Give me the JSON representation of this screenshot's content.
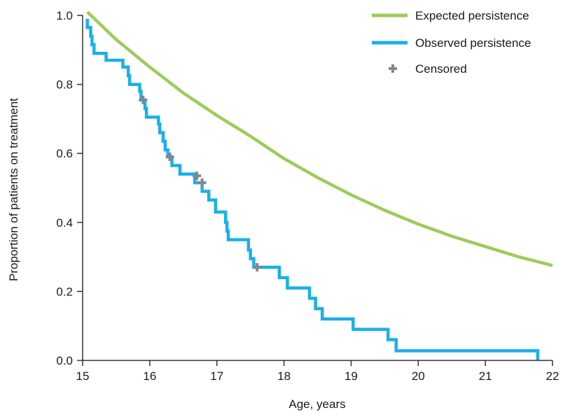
{
  "chart_data": {
    "type": "line",
    "title": "",
    "xlabel": "Age, years",
    "ylabel": "Proportion of patients on treatment",
    "xlim": [
      15,
      22
    ],
    "ylim": [
      0,
      1.0
    ],
    "x_ticks": [
      "15",
      "16",
      "17",
      "18",
      "19",
      "20",
      "21",
      "22"
    ],
    "y_ticks": [
      "0.0",
      "0.2",
      "0.4",
      "0.6",
      "0.8",
      "1.0"
    ],
    "grid": false,
    "legend_position": "top-right",
    "series": [
      {
        "name": "Expected persistence",
        "type": "line",
        "color": "#9ccc5a",
        "points": [
          [
            15.07,
            1.01
          ],
          [
            15.5,
            0.93
          ],
          [
            16.0,
            0.85
          ],
          [
            16.5,
            0.775
          ],
          [
            17.0,
            0.71
          ],
          [
            17.5,
            0.65
          ],
          [
            18.0,
            0.585
          ],
          [
            18.5,
            0.53
          ],
          [
            19.0,
            0.48
          ],
          [
            19.5,
            0.435
          ],
          [
            20.0,
            0.395
          ],
          [
            20.5,
            0.36
          ],
          [
            21.0,
            0.33
          ],
          [
            21.5,
            0.3
          ],
          [
            22.0,
            0.275
          ]
        ]
      },
      {
        "name": "Observed persistence",
        "type": "step",
        "color": "#1ab0e8",
        "points": [
          [
            15.07,
            0.99
          ],
          [
            15.07,
            0.965
          ],
          [
            15.12,
            0.965
          ],
          [
            15.12,
            0.94
          ],
          [
            15.14,
            0.94
          ],
          [
            15.14,
            0.915
          ],
          [
            15.17,
            0.915
          ],
          [
            15.17,
            0.89
          ],
          [
            15.35,
            0.89
          ],
          [
            15.35,
            0.87
          ],
          [
            15.6,
            0.87
          ],
          [
            15.6,
            0.85
          ],
          [
            15.68,
            0.85
          ],
          [
            15.68,
            0.825
          ],
          [
            15.7,
            0.825
          ],
          [
            15.7,
            0.8
          ],
          [
            15.85,
            0.8
          ],
          [
            15.85,
            0.78
          ],
          [
            15.87,
            0.78
          ],
          [
            15.87,
            0.755
          ],
          [
            15.93,
            0.755
          ],
          [
            15.93,
            0.73
          ],
          [
            15.95,
            0.73
          ],
          [
            15.95,
            0.705
          ],
          [
            16.13,
            0.705
          ],
          [
            16.13,
            0.685
          ],
          [
            16.15,
            0.685
          ],
          [
            16.15,
            0.66
          ],
          [
            16.2,
            0.66
          ],
          [
            16.2,
            0.635
          ],
          [
            16.23,
            0.635
          ],
          [
            16.23,
            0.61
          ],
          [
            16.27,
            0.61
          ],
          [
            16.27,
            0.59
          ],
          [
            16.33,
            0.59
          ],
          [
            16.33,
            0.565
          ],
          [
            16.45,
            0.565
          ],
          [
            16.45,
            0.54
          ],
          [
            16.67,
            0.54
          ],
          [
            16.67,
            0.515
          ],
          [
            16.78,
            0.515
          ],
          [
            16.78,
            0.49
          ],
          [
            16.88,
            0.49
          ],
          [
            16.88,
            0.465
          ],
          [
            16.98,
            0.465
          ],
          [
            16.98,
            0.44
          ],
          [
            16.98,
            0.43
          ],
          [
            17.13,
            0.43
          ],
          [
            17.13,
            0.4
          ],
          [
            17.15,
            0.4
          ],
          [
            17.15,
            0.375
          ],
          [
            17.17,
            0.375
          ],
          [
            17.17,
            0.35
          ],
          [
            17.47,
            0.35
          ],
          [
            17.47,
            0.32
          ],
          [
            17.5,
            0.32
          ],
          [
            17.5,
            0.295
          ],
          [
            17.55,
            0.295
          ],
          [
            17.55,
            0.27
          ],
          [
            17.93,
            0.27
          ],
          [
            17.93,
            0.24
          ],
          [
            18.05,
            0.24
          ],
          [
            18.05,
            0.21
          ],
          [
            18.38,
            0.21
          ],
          [
            18.38,
            0.18
          ],
          [
            18.47,
            0.18
          ],
          [
            18.47,
            0.15
          ],
          [
            18.57,
            0.15
          ],
          [
            18.57,
            0.12
          ],
          [
            19.03,
            0.12
          ],
          [
            19.03,
            0.09
          ],
          [
            19.55,
            0.09
          ],
          [
            19.55,
            0.06
          ],
          [
            19.67,
            0.06
          ],
          [
            19.67,
            0.028
          ],
          [
            21.78,
            0.028
          ],
          [
            21.78,
            0.0
          ]
        ]
      },
      {
        "name": "Censored",
        "type": "scatter",
        "color": "#808890",
        "points": [
          [
            15.9,
            0.755
          ],
          [
            16.3,
            0.59
          ],
          [
            16.7,
            0.535
          ],
          [
            16.78,
            0.515
          ],
          [
            17.6,
            0.27
          ]
        ]
      }
    ]
  }
}
